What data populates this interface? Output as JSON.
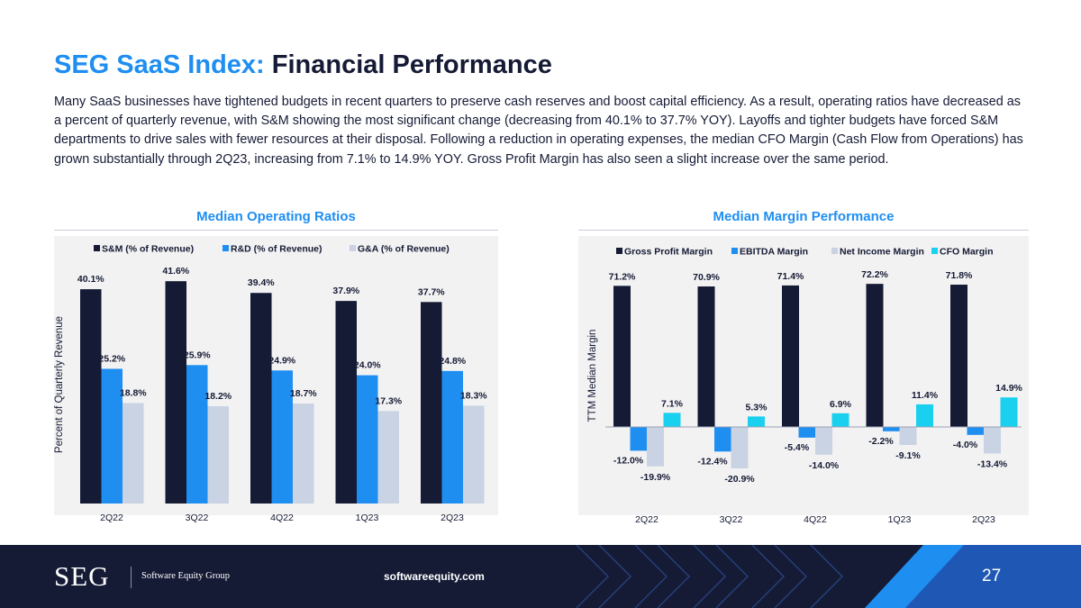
{
  "title": {
    "accent": "SEG SaaS Index:",
    "main": "Financial Performance"
  },
  "intro": "Many SaaS businesses have tightened budgets in recent quarters to preserve cash reserves and boost capital efficiency. As a result, operating ratios have decreased as a percent of quarterly revenue, with S&M showing the most significant change (decreasing from 40.1% to 37.7% YOY). Layoffs and tighter budgets have forced S&M departments to drive sales with fewer resources at their disposal. Following a reduction in operating expenses, the median CFO Margin (Cash Flow from Operations) has grown substantially through 2Q23, increasing from 7.1% to 14.9% YOY. Gross Profit Margin has also seen a slight increase over the same period.",
  "colors": {
    "accent": "#1f8ef1",
    "navy": "#151a35",
    "bright_blue": "#1f8ef1",
    "light_gray": "#c9d3e3",
    "cyan": "#19d0ee"
  },
  "footer": {
    "logo": "SEG",
    "company": "Software Equity Group",
    "website": "softwareequity.com",
    "page_number": "27"
  },
  "chart_data": [
    {
      "type": "bar",
      "title": "Median Operating Ratios",
      "xlabel": "",
      "ylabel": "Percent of Quarterly Revenue",
      "ylim": [
        0,
        45
      ],
      "legend": "top",
      "categories": [
        "2Q22",
        "3Q22",
        "4Q22",
        "1Q23",
        "2Q23"
      ],
      "series": [
        {
          "name": "S&M (% of Revenue)",
          "color": "#151a35",
          "values": [
            40.1,
            41.6,
            39.4,
            37.9,
            37.7
          ],
          "labels": [
            "40.1%",
            "41.6%",
            "39.4%",
            "37.9%",
            "37.7%"
          ]
        },
        {
          "name": "R&D (% of Revenue)",
          "color": "#1f8ef1",
          "values": [
            25.2,
            25.9,
            24.9,
            24.0,
            24.8
          ],
          "labels": [
            "25.2%",
            "25.9%",
            "24.9%",
            "24.0%",
            "24.8%"
          ]
        },
        {
          "name": "G&A (% of Revenue)",
          "color": "#c9d3e3",
          "values": [
            18.8,
            18.2,
            18.7,
            17.3,
            18.3
          ],
          "labels": [
            "18.8%",
            "18.2%",
            "18.7%",
            "17.3%",
            "18.3%"
          ]
        }
      ]
    },
    {
      "type": "bar",
      "title": "Median Margin Performance",
      "xlabel": "",
      "ylabel": "TTM Median Margin",
      "ylim": [
        -25,
        80
      ],
      "legend": "top",
      "categories": [
        "2Q22",
        "3Q22",
        "4Q22",
        "1Q23",
        "2Q23"
      ],
      "series": [
        {
          "name": "Gross Profit Margin",
          "color": "#151a35",
          "values": [
            71.2,
            70.9,
            71.4,
            72.2,
            71.8
          ],
          "labels": [
            "71.2%",
            "70.9%",
            "71.4%",
            "72.2%",
            "71.8%"
          ]
        },
        {
          "name": "EBITDA Margin",
          "color": "#1f8ef1",
          "values": [
            -12.0,
            -12.4,
            -5.4,
            -2.2,
            -4.0
          ],
          "labels": [
            "-12.0%",
            "-12.4%",
            "-5.4%",
            "-2.2%",
            "-4.0%"
          ]
        },
        {
          "name": "Net Income Margin",
          "color": "#c9d3e3",
          "values": [
            -19.9,
            -20.9,
            -14.0,
            -9.1,
            -13.4
          ],
          "labels": [
            "-19.9%",
            "-20.9%",
            "-14.0%",
            "-9.1%",
            "-13.4%"
          ]
        },
        {
          "name": "CFO Margin",
          "color": "#19d0ee",
          "values": [
            7.1,
            5.3,
            6.9,
            11.4,
            14.9
          ],
          "labels": [
            "7.1%",
            "5.3%",
            "6.9%",
            "11.4%",
            "14.9%"
          ]
        }
      ]
    }
  ]
}
